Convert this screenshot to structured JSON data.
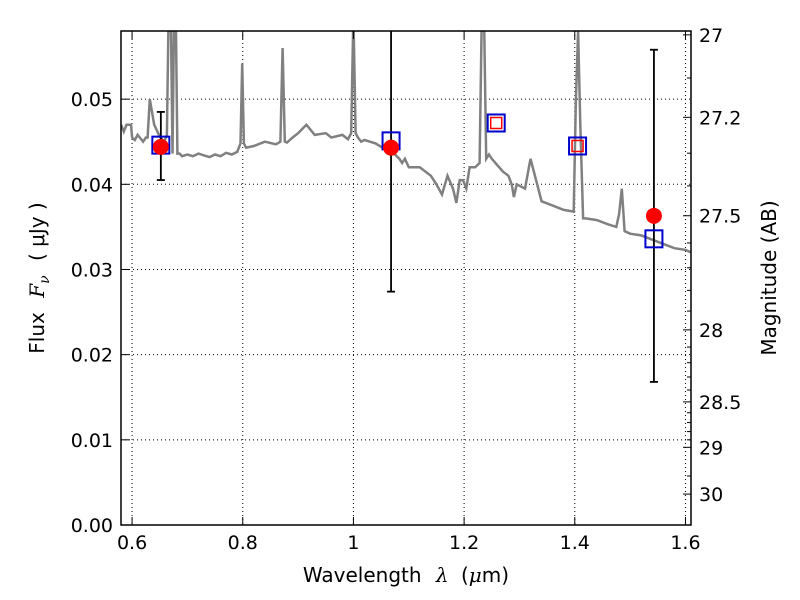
{
  "chart_data": {
    "type": "scatter",
    "xlabel_text": "Wavelength",
    "xlabel_symbol": "λ",
    "xlabel_unit_open": "(",
    "xlabel_unit_mu": "μ",
    "xlabel_unit_rest": "m)",
    "ylabel_text": "Flux",
    "ylabel_symbol": "F",
    "ylabel_sub": "ν",
    "ylabel_unit": "( μJy )",
    "y2label": "Magnitude (AB)",
    "xlim": [
      0.58,
      1.61
    ],
    "ylim": [
      0.0,
      0.058
    ],
    "grid": true,
    "x_ticks": [
      0.6,
      0.8,
      1.0,
      1.2,
      1.4,
      1.6
    ],
    "x_tick_labels": [
      "0.6",
      "0.8",
      "1",
      "1.2",
      "1.4",
      "1.6"
    ],
    "y_ticks": [
      0.0,
      0.01,
      0.02,
      0.03,
      0.04,
      0.05
    ],
    "y_tick_labels": [
      "0.00",
      "0.01",
      "0.02",
      "0.03",
      "0.04",
      "0.05"
    ],
    "mag_ticks": [
      27,
      27.2,
      27.5,
      28,
      28.5,
      29,
      30
    ],
    "mag_tick_labels": [
      "27",
      "27.2",
      "27.5",
      "28",
      "28.5",
      "29",
      "30"
    ],
    "mag_minor_ticks": [
      27.1,
      27.3,
      27.4,
      27.6,
      27.7,
      27.8,
      27.9,
      28.1,
      28.2,
      28.3,
      28.4,
      28.6,
      28.7,
      28.8,
      28.9,
      29.5
    ],
    "model_spectrum": {
      "color": "#808080",
      "x": [
        0.58,
        0.585,
        0.59,
        0.594,
        0.598,
        0.6,
        0.605,
        0.61,
        0.62,
        0.625,
        0.628,
        0.632,
        0.64,
        0.65,
        0.658,
        0.663,
        0.666,
        0.67,
        0.673,
        0.676,
        0.679,
        0.682,
        0.686,
        0.69,
        0.7,
        0.71,
        0.72,
        0.73,
        0.74,
        0.75,
        0.76,
        0.77,
        0.78,
        0.79,
        0.796,
        0.799,
        0.802,
        0.806,
        0.82,
        0.84,
        0.86,
        0.868,
        0.872,
        0.876,
        0.88,
        0.89,
        0.9,
        0.915,
        0.93,
        0.95,
        0.96,
        0.98,
        0.99,
        0.996,
        1.0,
        1.004,
        1.008,
        1.014,
        1.02,
        1.04,
        1.06,
        1.068,
        1.075,
        1.083,
        1.088,
        1.093,
        1.1,
        1.12,
        1.14,
        1.15,
        1.16,
        1.17,
        1.18,
        1.186,
        1.192,
        1.198,
        1.204,
        1.21,
        1.22,
        1.228,
        1.232,
        1.236,
        1.24,
        1.245,
        1.25,
        1.27,
        1.28,
        1.286,
        1.29,
        1.295,
        1.31,
        1.32,
        1.34,
        1.36,
        1.38,
        1.398,
        1.402,
        1.406,
        1.41,
        1.415,
        1.42,
        1.44,
        1.46,
        1.475,
        1.48,
        1.485,
        1.49,
        1.5,
        1.52,
        1.54,
        1.56,
        1.58,
        1.6,
        1.61
      ],
      "y": [
        0.047,
        0.0462,
        0.047,
        0.047,
        0.047,
        0.0455,
        0.0452,
        0.0458,
        0.045,
        0.0455,
        0.0455,
        0.05,
        0.047,
        0.0456,
        0.045,
        0.0458,
        0.06,
        0.06,
        0.0436,
        0.06,
        0.06,
        0.0436,
        0.0436,
        0.0433,
        0.0435,
        0.0433,
        0.0436,
        0.0434,
        0.0432,
        0.0435,
        0.0433,
        0.0437,
        0.0435,
        0.0438,
        0.0448,
        0.0542,
        0.0448,
        0.0443,
        0.0445,
        0.045,
        0.0447,
        0.045,
        0.056,
        0.045,
        0.0449,
        0.0455,
        0.046,
        0.047,
        0.0458,
        0.046,
        0.0455,
        0.0458,
        0.0453,
        0.046,
        0.06,
        0.046,
        0.0455,
        0.045,
        0.0452,
        0.0448,
        0.044,
        0.0438,
        0.0435,
        0.043,
        0.0425,
        0.043,
        0.042,
        0.042,
        0.041,
        0.04,
        0.0388,
        0.041,
        0.0395,
        0.0378,
        0.0405,
        0.0405,
        0.0395,
        0.042,
        0.042,
        0.0425,
        0.06,
        0.06,
        0.043,
        0.0435,
        0.043,
        0.0415,
        0.041,
        0.04,
        0.0385,
        0.04,
        0.0395,
        0.043,
        0.038,
        0.0375,
        0.037,
        0.0368,
        0.05,
        0.058,
        0.047,
        0.036,
        0.036,
        0.0358,
        0.0353,
        0.035,
        0.0365,
        0.0395,
        0.0345,
        0.0342,
        0.034,
        0.0335,
        0.033,
        0.0325,
        0.0323,
        0.032
      ]
    },
    "series": [
      {
        "name": "",
        "marker": "open-square",
        "color": "#0000cc",
        "x": [
          0.652,
          1.068,
          1.258,
          1.405,
          1.543
        ],
        "y": [
          0.0446,
          0.0451,
          0.0472,
          0.0445,
          0.0336
        ]
      },
      {
        "name": "",
        "marker": "small-open-square",
        "color": "#ff0000",
        "x": [
          1.258,
          1.405
        ],
        "y": [
          0.0472,
          0.0445
        ]
      },
      {
        "name": "",
        "marker": "filled-circle",
        "color": "#ff0000",
        "x": [
          0.652,
          1.068,
          1.543
        ],
        "y": [
          0.0444,
          0.0443,
          0.0363
        ]
      }
    ],
    "errorbars": [
      {
        "x": 0.652,
        "y": 0.0444,
        "ylow": 0.0405,
        "yhigh": 0.0485
      },
      {
        "x": 1.068,
        "y": 0.0443,
        "ylow": 0.0274,
        "yhigh": 0.06
      },
      {
        "x": 1.543,
        "y": 0.0363,
        "ylow": 0.0168,
        "yhigh": 0.0558
      }
    ]
  }
}
